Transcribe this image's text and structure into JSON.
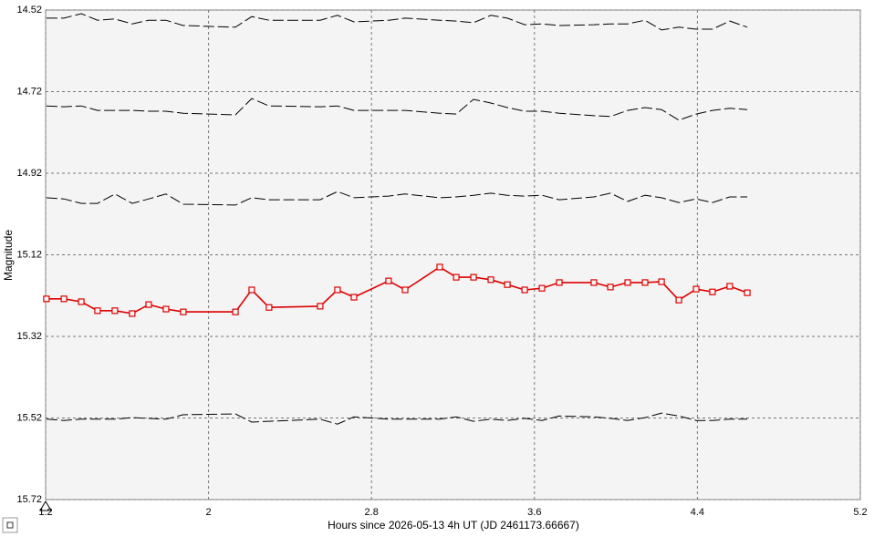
{
  "chart_data": {
    "type": "line",
    "x_label": "Hours since 2026-05-13 4h UT (JD 2461173.66667)",
    "y_label": "Magnitude",
    "x": [
      1.204,
      1.29,
      1.375,
      1.455,
      1.54,
      1.625,
      1.706,
      1.791,
      1.876,
      2.132,
      2.212,
      2.297,
      2.548,
      2.633,
      2.714,
      2.884,
      2.965,
      3.135,
      3.216,
      3.301,
      3.386,
      3.467,
      3.552,
      3.637,
      3.722,
      3.892,
      3.973,
      4.058,
      4.143,
      4.224,
      4.309,
      4.394,
      4.474,
      4.559,
      4.645
    ],
    "series": [
      {
        "color": "#000000",
        "line_style": "dashed",
        "markers": false,
        "values": [
          14.54,
          14.54,
          14.529,
          14.545,
          14.542,
          14.554,
          14.545,
          14.545,
          14.558,
          14.562,
          14.536,
          14.545,
          14.545,
          14.533,
          14.549,
          14.545,
          14.54,
          14.545,
          14.547,
          14.551,
          14.533,
          14.54,
          14.556,
          14.554,
          14.558,
          14.556,
          14.554,
          14.554,
          14.545,
          14.569,
          14.562,
          14.567,
          14.567,
          14.547,
          14.562
        ]
      },
      {
        "color": "#000000",
        "line_style": "dashed",
        "markers": false,
        "values": [
          14.755,
          14.757,
          14.755,
          14.766,
          14.766,
          14.766,
          14.768,
          14.768,
          14.773,
          14.777,
          14.737,
          14.755,
          14.757,
          14.755,
          14.766,
          14.766,
          14.766,
          14.773,
          14.775,
          14.739,
          14.748,
          14.759,
          14.768,
          14.768,
          14.773,
          14.779,
          14.781,
          14.766,
          14.759,
          14.764,
          14.79,
          14.775,
          14.766,
          14.761,
          14.764
        ]
      },
      {
        "color": "#000000",
        "line_style": "dashed",
        "markers": false,
        "values": [
          14.98,
          14.983,
          14.994,
          14.994,
          14.971,
          14.994,
          14.983,
          14.971,
          14.996,
          14.998,
          14.98,
          14.985,
          14.985,
          14.965,
          14.98,
          14.976,
          14.971,
          14.98,
          14.978,
          14.974,
          14.969,
          14.974,
          14.976,
          14.974,
          14.985,
          14.978,
          14.969,
          14.989,
          14.974,
          14.98,
          14.992,
          14.983,
          14.992,
          14.978,
          14.978
        ]
      },
      {
        "color": "#dd0000",
        "line_style": "solid",
        "markers": true,
        "values": [
          15.228,
          15.228,
          15.235,
          15.257,
          15.257,
          15.264,
          15.242,
          15.253,
          15.26,
          15.26,
          15.206,
          15.249,
          15.246,
          15.206,
          15.224,
          15.184,
          15.206,
          15.15,
          15.175,
          15.175,
          15.181,
          15.193,
          15.206,
          15.202,
          15.188,
          15.188,
          15.199,
          15.188,
          15.188,
          15.186,
          15.231,
          15.204,
          15.211,
          15.197,
          15.213
        ]
      },
      {
        "color": "#000000",
        "line_style": "dashed",
        "markers": false,
        "values": [
          15.523,
          15.526,
          15.523,
          15.523,
          15.523,
          15.519,
          15.521,
          15.523,
          15.512,
          15.51,
          15.53,
          15.528,
          15.523,
          15.535,
          15.517,
          15.523,
          15.523,
          15.523,
          15.517,
          15.528,
          15.523,
          15.526,
          15.521,
          15.526,
          15.515,
          15.517,
          15.521,
          15.526,
          15.519,
          15.508,
          15.515,
          15.526,
          15.526,
          15.523,
          15.523
        ]
      }
    ],
    "xlim": [
      1.2,
      5.2
    ],
    "xticks": [
      1.2,
      2,
      2.8,
      3.6,
      4.4,
      5.2
    ],
    "ylim": [
      14.52,
      15.72
    ],
    "yticks": [
      14.52,
      14.72,
      14.92,
      15.12,
      15.32,
      15.52,
      15.72
    ],
    "y_inverted": true,
    "grid": true
  }
}
